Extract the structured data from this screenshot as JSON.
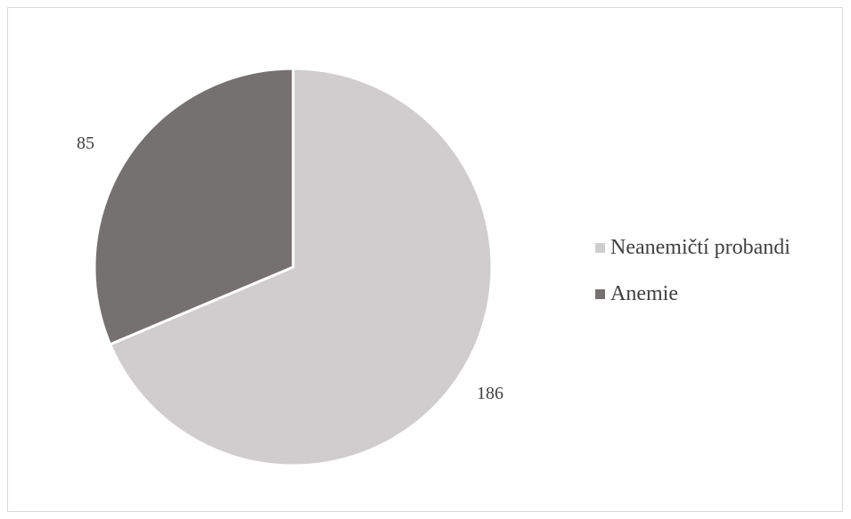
{
  "chart_data": {
    "type": "pie",
    "title": "",
    "series": [
      {
        "values": [
          186,
          85
        ],
        "labels": [
          "Neanemičtí probandi",
          "Anemie"
        ],
        "colors": [
          "#cfcdcd",
          "#767171"
        ]
      }
    ],
    "data_labels": [
      "186",
      "85"
    ],
    "start_angle_deg": 0,
    "direction": "clockwise",
    "legend": {
      "position": "right",
      "items": [
        {
          "label": "Neanemičtí probandi",
          "color": "#cfcdcd"
        },
        {
          "label": "Anemie",
          "color": "#767171"
        }
      ]
    }
  }
}
